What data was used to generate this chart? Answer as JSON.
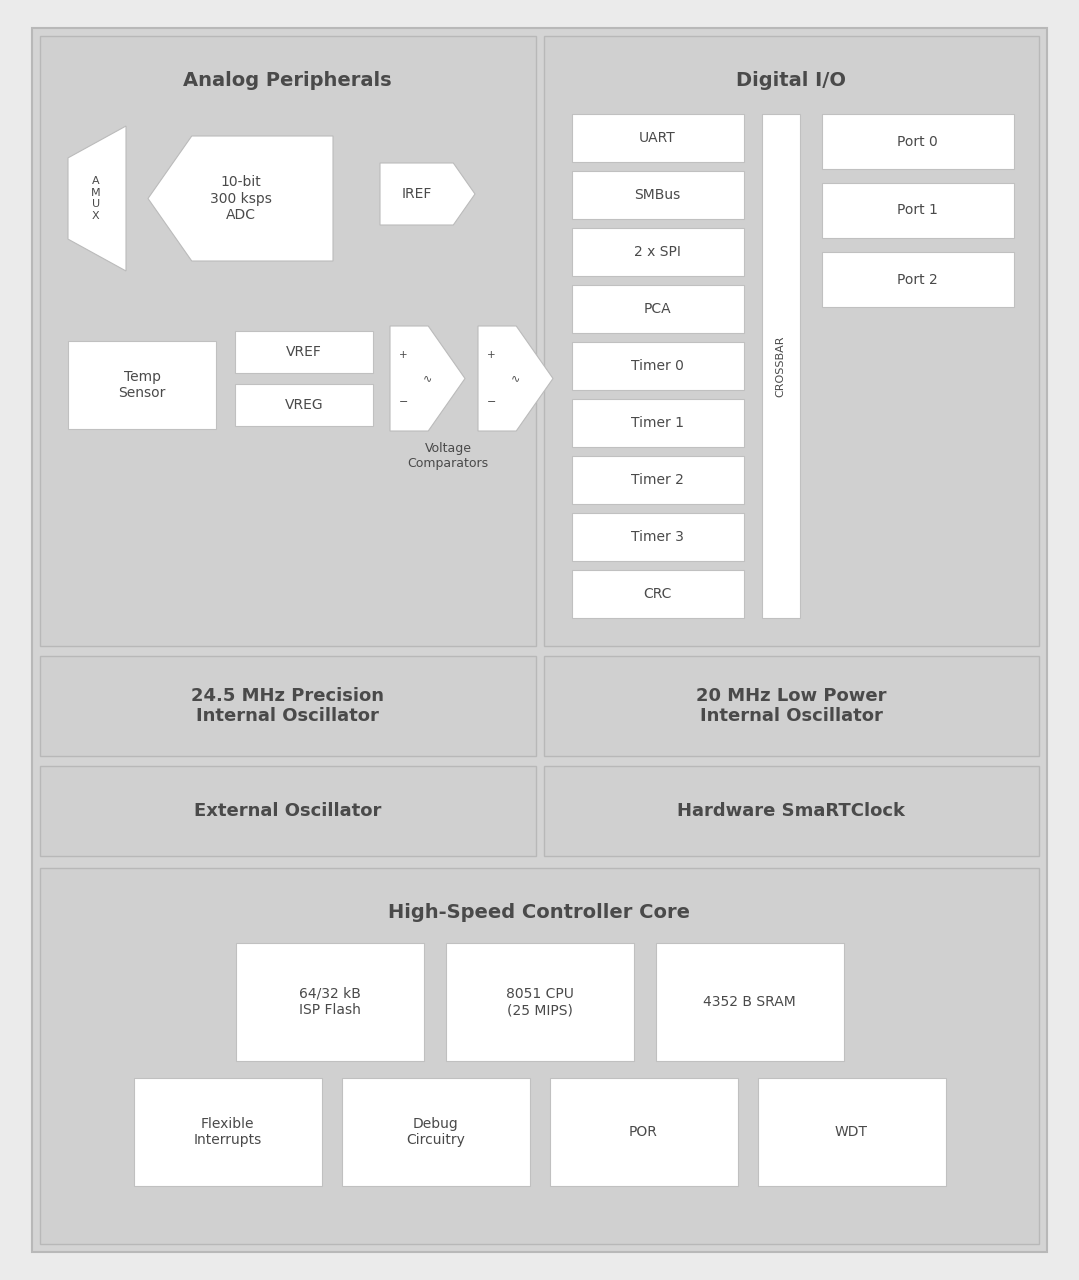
{
  "bg_color": "#ebebeb",
  "panel_bg": "#d4d4d4",
  "white": "#ffffff",
  "text_dark": "#4a4a4a",
  "analog_title": "Analog Peripherals",
  "digital_title": "Digital I/O",
  "osc1_text": "24.5 MHz Precision\nInternal Oscillator",
  "osc2_text": "20 MHz Low Power\nInternal Oscillator",
  "ext_osc_text": "External Oscillator",
  "hw_rtc_text": "Hardware SmaRTClock",
  "core_title": "High-Speed Controller Core",
  "digital_items": [
    "UART",
    "SMBus",
    "2 x SPI",
    "PCA",
    "Timer 0",
    "Timer 1",
    "Timer 2",
    "Timer 3",
    "CRC"
  ],
  "port_items": [
    "Port 0",
    "Port 1",
    "Port 2"
  ],
  "core_row1": [
    "64/32 kB\nISP Flash",
    "8051 CPU\n(25 MIPS)",
    "4352 B SRAM"
  ],
  "core_row2": [
    "Flexible\nInterrupts",
    "Debug\nCircuitry",
    "POR",
    "WDT"
  ]
}
